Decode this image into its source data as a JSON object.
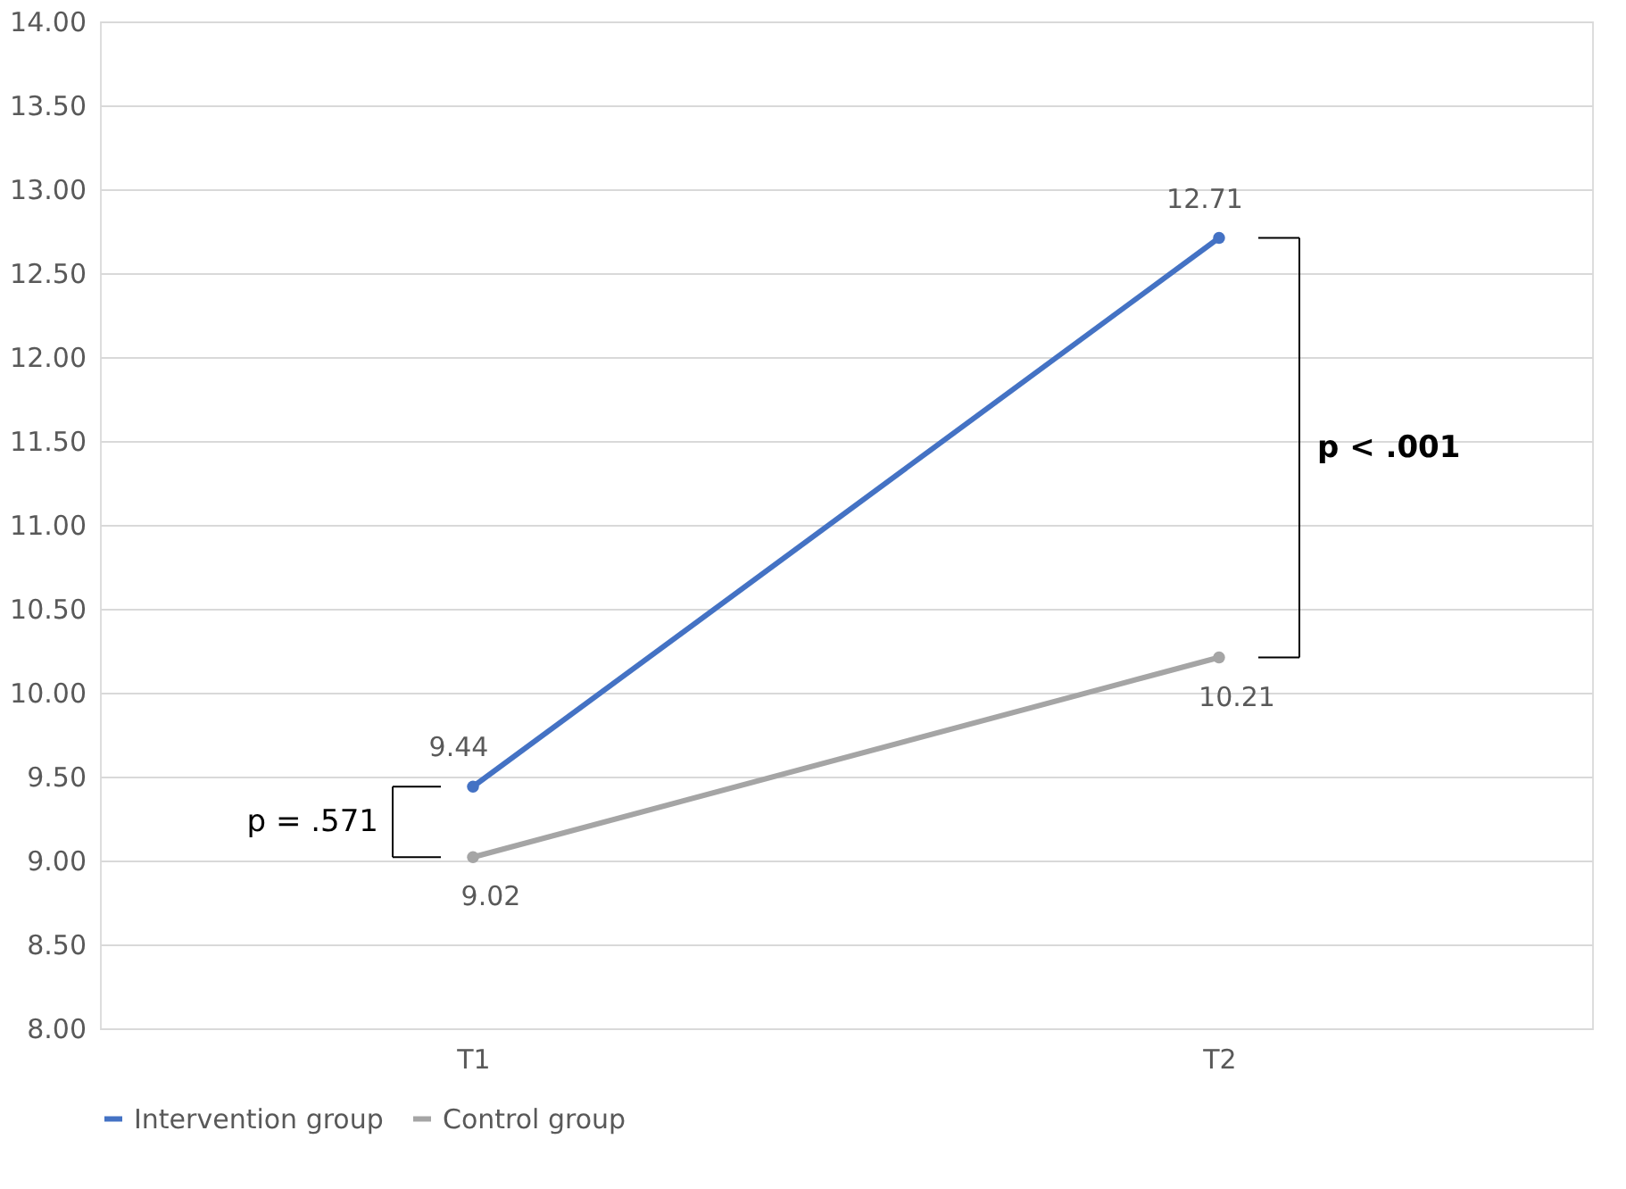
{
  "chart_data": {
    "type": "line",
    "categories": [
      "T1",
      "T2"
    ],
    "series": [
      {
        "name": "Intervention group",
        "color": "#4472c4",
        "values": [
          9.44,
          12.71
        ]
      },
      {
        "name": "Control group",
        "color": "#a5a5a5",
        "values": [
          9.02,
          10.21
        ]
      }
    ],
    "ylim": [
      8,
      14
    ],
    "yticks": [
      {
        "value": 8,
        "label": "8.00"
      },
      {
        "value": 8.5,
        "label": "8.50"
      },
      {
        "value": 9,
        "label": "9.00"
      },
      {
        "value": 9.5,
        "label": "9.50"
      },
      {
        "value": 10,
        "label": "10.00"
      },
      {
        "value": 10.5,
        "label": "10.50"
      },
      {
        "value": 11,
        "label": "11.00"
      },
      {
        "value": 11.5,
        "label": "11.50"
      },
      {
        "value": 12,
        "label": "12.00"
      },
      {
        "value": 12.5,
        "label": "12.50"
      },
      {
        "value": 13,
        "label": "13.00"
      },
      {
        "value": 13.5,
        "label": "13.50"
      },
      {
        "value": 14,
        "label": "14.00"
      }
    ],
    "annotations": [
      "p = .571",
      "p < .001"
    ],
    "data_labels": true,
    "grid": "y",
    "legend": "bottom",
    "marker": "circle",
    "line_style": "solid"
  }
}
